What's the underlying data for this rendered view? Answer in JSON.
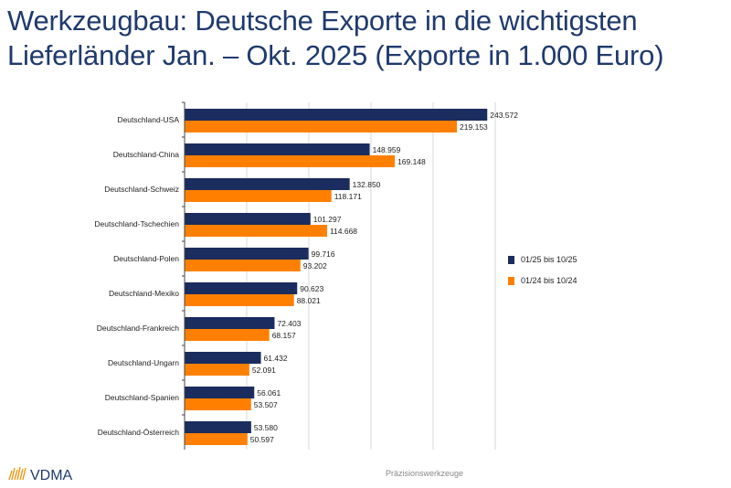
{
  "title": "Werkzeugbau: Deutsche Exporte in die wichtigsten\nLieferländer Jan. – Okt. 2025 (Exporte in 1.000 Euro)",
  "footer": "Präzisionswerkzeuge",
  "logo_text": "VDMA",
  "colors": {
    "series1": "#1b2c5e",
    "series2": "#ff8000",
    "grid": "#d9d9d9"
  },
  "chart_data": {
    "type": "bar",
    "orientation": "horizontal",
    "categories": [
      "Deutschland-USA",
      "Deutschland-China",
      "Deutschland-Schweiz",
      "Deutschland-Tschechien",
      "Deutschland-Polen",
      "Deutschland-Mexiko",
      "Deutschland-Frankreich",
      "Deutschland-Ungarn",
      "Deutschland-Spanien",
      "Deutschland-Österreich"
    ],
    "series": [
      {
        "name": "01/25 bis 10/25",
        "values": [
          243572,
          148959,
          132850,
          101297,
          99716,
          90623,
          72403,
          61432,
          56061,
          53580
        ],
        "labels": [
          "243.572",
          "148.959",
          "132.850",
          "101.297",
          "99.716",
          "90.623",
          "72.403",
          "61.432",
          "56.061",
          "53.580"
        ]
      },
      {
        "name": "01/24 bis 10/24",
        "values": [
          219153,
          169148,
          118171,
          114668,
          93202,
          88021,
          68157,
          52091,
          53507,
          50597
        ],
        "labels": [
          "219.153",
          "169.148",
          "118.171",
          "114.668",
          "93.202",
          "88.021",
          "68.157",
          "52.091",
          "53.507",
          "50.597"
        ]
      }
    ],
    "xlim": [
      0,
      250000
    ],
    "grid": true,
    "grid_step": 50000,
    "legend_position": "right"
  }
}
